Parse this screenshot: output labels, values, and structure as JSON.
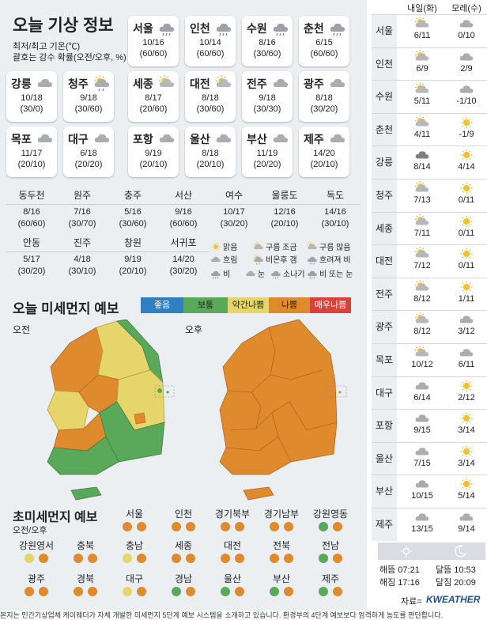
{
  "header": {
    "title": "오늘 기상 정보",
    "subtitle1": "최저/최고 기온(℃)",
    "subtitle2": "괄호는 강수 확률(오전/오후, %)"
  },
  "cards": [
    {
      "name": "서울",
      "temp": "10/16",
      "prob": "(60/60)",
      "icon": "rain"
    },
    {
      "name": "인천",
      "temp": "10/14",
      "prob": "(60/60)",
      "icon": "rain"
    },
    {
      "name": "수원",
      "temp": "8/16",
      "prob": "(30/60)",
      "icon": "rain"
    },
    {
      "name": "춘천",
      "temp": "6/15",
      "prob": "(60/60)",
      "icon": "rain"
    },
    {
      "name": "강릉",
      "temp": "10/18",
      "prob": "(30/0)",
      "icon": "cloudy"
    },
    {
      "name": "청주",
      "temp": "9/18",
      "prob": "(30/60)",
      "icon": "suncloud-rain"
    },
    {
      "name": "세종",
      "temp": "8/17",
      "prob": "(20/60)",
      "icon": "suncloud"
    },
    {
      "name": "대전",
      "temp": "8/18",
      "prob": "(30/60)",
      "icon": "suncloud"
    },
    {
      "name": "전주",
      "temp": "9/18",
      "prob": "(30/30)",
      "icon": "cloudy"
    },
    {
      "name": "광주",
      "temp": "8/18",
      "prob": "(30/20)",
      "icon": "cloudy"
    },
    {
      "name": "목포",
      "temp": "11/17",
      "prob": "(20/10)",
      "icon": "cloudy"
    },
    {
      "name": "대구",
      "temp": "6/18",
      "prob": "(20/20)",
      "icon": "cloudy"
    },
    {
      "name": "포항",
      "temp": "9/19",
      "prob": "(20/10)",
      "icon": "cloudy"
    },
    {
      "name": "울산",
      "temp": "8/18",
      "prob": "(20/10)",
      "icon": "cloudy"
    },
    {
      "name": "부산",
      "temp": "11/19",
      "prob": "(20/20)",
      "icon": "cloudy"
    },
    {
      "name": "제주",
      "temp": "14/20",
      "prob": "(20/10)",
      "icon": "cloudy"
    }
  ],
  "small_cities": [
    {
      "name": "동두천",
      "temp": "8/16",
      "prob": "(60/60)"
    },
    {
      "name": "원주",
      "temp": "7/16",
      "prob": "(30/70)"
    },
    {
      "name": "충주",
      "temp": "5/16",
      "prob": "(30/60)"
    },
    {
      "name": "서산",
      "temp": "9/16",
      "prob": "(60/60)"
    },
    {
      "name": "여수",
      "temp": "10/17",
      "prob": "(30/20)"
    },
    {
      "name": "울릉도",
      "temp": "12/16",
      "prob": "(20/10)"
    },
    {
      "name": "독도",
      "temp": "14/16",
      "prob": "(30/10)"
    },
    {
      "name": "안동",
      "temp": "5/17",
      "prob": "(30/20)"
    },
    {
      "name": "진주",
      "temp": "4/18",
      "prob": "(30/10)"
    },
    {
      "name": "창원",
      "temp": "9/19",
      "prob": "(20/10)"
    },
    {
      "name": "서귀포",
      "temp": "14/20",
      "prob": "(30/20)"
    }
  ],
  "weather_legend": [
    "맑음",
    "구름 조금",
    "구름 많음",
    "흐림",
    "비온후 갬",
    "흐려져 비",
    "비",
    "눈",
    "소나기",
    "비 또는 눈"
  ],
  "dust": {
    "title": "오늘 미세먼지 예보",
    "levels": [
      {
        "label": "좋음",
        "color": "#2f7fc2"
      },
      {
        "label": "보통",
        "color": "#5aa85a"
      },
      {
        "label": "약간나쁨",
        "color": "#e6d56a"
      },
      {
        "label": "나쁨",
        "color": "#e08a2e"
      },
      {
        "label": "매우나쁨",
        "color": "#d9413a"
      }
    ],
    "am_label": "오전",
    "pm_label": "오후"
  },
  "fine_dust": {
    "title": "초미세먼지 예보",
    "subtitle": "오전/오후",
    "regions": [
      {
        "name": "서울",
        "am": "나쁨",
        "pm": "나쁨"
      },
      {
        "name": "인천",
        "am": "나쁨",
        "pm": "나쁨"
      },
      {
        "name": "경기북부",
        "am": "나쁨",
        "pm": "나쁨"
      },
      {
        "name": "경기남부",
        "am": "나쁨",
        "pm": "나쁨"
      },
      {
        "name": "강원영동",
        "am": "보통",
        "pm": "나쁨"
      },
      {
        "name": "강원영서",
        "am": "약간나쁨",
        "pm": "나쁨"
      },
      {
        "name": "충북",
        "am": "나쁨",
        "pm": "나쁨"
      },
      {
        "name": "충남",
        "am": "약간나쁨",
        "pm": "나쁨"
      },
      {
        "name": "세종",
        "am": "나쁨",
        "pm": "나쁨"
      },
      {
        "name": "대전",
        "am": "나쁨",
        "pm": "나쁨"
      },
      {
        "name": "전북",
        "am": "나쁨",
        "pm": "나쁨"
      },
      {
        "name": "전남",
        "am": "보통",
        "pm": "나쁨"
      },
      {
        "name": "광주",
        "am": "나쁨",
        "pm": "나쁨"
      },
      {
        "name": "경북",
        "am": "나쁨",
        "pm": "나쁨"
      },
      {
        "name": "대구",
        "am": "약간나쁨",
        "pm": "나쁨"
      },
      {
        "name": "경남",
        "am": "보통",
        "pm": "나쁨"
      },
      {
        "name": "울산",
        "am": "보통",
        "pm": "나쁨"
      },
      {
        "name": "부산",
        "am": "보통",
        "pm": "나쁨"
      },
      {
        "name": "제주",
        "am": "보통",
        "pm": "나쁨"
      }
    ]
  },
  "forecast": {
    "tomorrow_label": "내일(화)",
    "dayafter_label": "모레(수)",
    "rows": [
      {
        "city": "서울",
        "d1": "6/11",
        "d1i": "suncloud",
        "d2": "0/10",
        "d2i": "cloudy"
      },
      {
        "city": "인천",
        "d1": "6/9",
        "d1i": "suncloud",
        "d2": "2/9",
        "d2i": "cloudy"
      },
      {
        "city": "수원",
        "d1": "5/11",
        "d1i": "suncloud",
        "d2": "-1/10",
        "d2i": "cloudy"
      },
      {
        "city": "춘천",
        "d1": "4/11",
        "d1i": "suncloud",
        "d2": "-1/9",
        "d2i": "sun"
      },
      {
        "city": "강릉",
        "d1": "8/14",
        "d1i": "dark",
        "d2": "4/14",
        "d2i": "sun"
      },
      {
        "city": "청주",
        "d1": "7/13",
        "d1i": "suncloud",
        "d2": "0/11",
        "d2i": "sun"
      },
      {
        "city": "세종",
        "d1": "7/11",
        "d1i": "suncloud",
        "d2": "0/11",
        "d2i": "sun"
      },
      {
        "city": "대전",
        "d1": "7/12",
        "d1i": "suncloud",
        "d2": "0/11",
        "d2i": "sun"
      },
      {
        "city": "전주",
        "d1": "8/12",
        "d1i": "suncloud",
        "d2": "1/11",
        "d2i": "sun"
      },
      {
        "city": "광주",
        "d1": "8/12",
        "d1i": "suncloud",
        "d2": "3/12",
        "d2i": "cloudy"
      },
      {
        "city": "목포",
        "d1": "10/12",
        "d1i": "suncloud",
        "d2": "6/11",
        "d2i": "cloudy"
      },
      {
        "city": "대구",
        "d1": "6/14",
        "d1i": "cloudy",
        "d2": "2/12",
        "d2i": "sun"
      },
      {
        "city": "포항",
        "d1": "9/15",
        "d1i": "cloudy",
        "d2": "3/14",
        "d2i": "sun"
      },
      {
        "city": "울산",
        "d1": "7/15",
        "d1i": "cloudy",
        "d2": "3/14",
        "d2i": "sun"
      },
      {
        "city": "부산",
        "d1": "10/15",
        "d1i": "cloudy",
        "d2": "5/14",
        "d2i": "sun"
      },
      {
        "city": "제주",
        "d1": "13/15",
        "d1i": "cloudy",
        "d2": "9/14",
        "d2i": "cloudy"
      }
    ],
    "sunrise": "해뜸 07:21",
    "sunset": "해짐 17:16",
    "moonrise": "달뜸 10:53",
    "moonset": "달짐 20:09",
    "source": "자료=",
    "brand": "KWEATHER"
  },
  "footer": "본지는 민간기상업체 케이웨더가 자체 개발한 미세먼지 5단계 예보 시스템을 소개하고 있습니다. 환경부의 4단계 예보보다 엄격하게 농도를 판단합니다."
}
